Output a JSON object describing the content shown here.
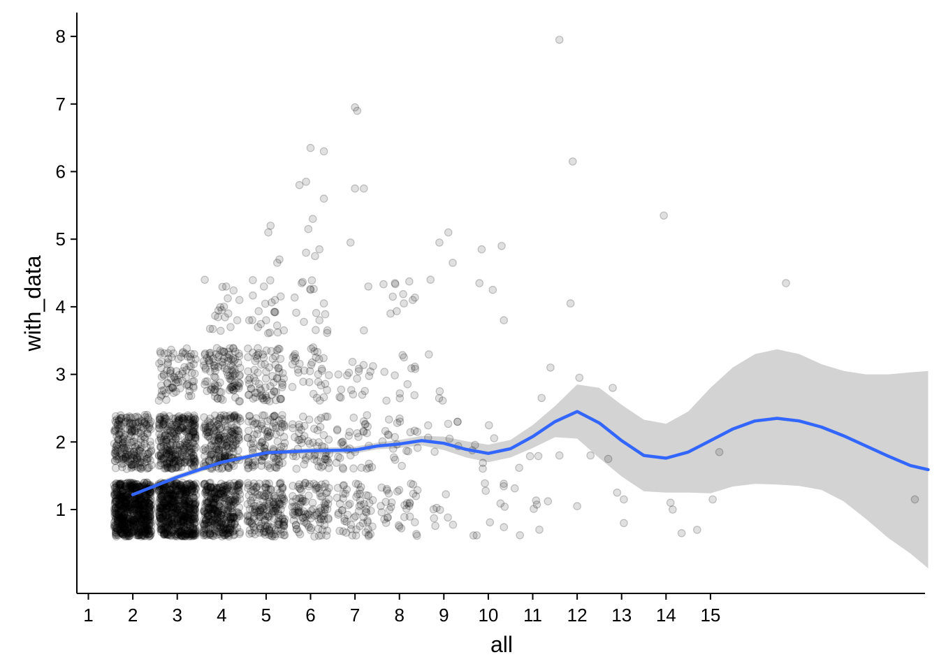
{
  "chart_data": {
    "type": "scatter",
    "xlabel": "all",
    "ylabel": "with_data",
    "x_ticks": [
      1,
      2,
      3,
      4,
      5,
      6,
      7,
      8,
      9,
      10,
      11,
      12,
      13,
      14,
      15
    ],
    "y_ticks": [
      1,
      2,
      3,
      4,
      5,
      6,
      7,
      8
    ],
    "xlim": [
      0.8,
      19.9
    ],
    "ylim": [
      -0.25,
      8.35
    ],
    "grid": false,
    "colors": {
      "points": "#000000",
      "smooth_line": "#3366FF",
      "confidence_band": "#D3D3D3"
    },
    "points_jittered": true,
    "point_groups": [
      {
        "x": 2,
        "y": 1,
        "count": 700
      },
      {
        "x": 2,
        "y": 2,
        "count": 220
      },
      {
        "x": 3,
        "y": 1,
        "count": 600
      },
      {
        "x": 3,
        "y": 2,
        "count": 300
      },
      {
        "x": 3,
        "y": 3,
        "count": 80
      },
      {
        "x": 4,
        "y": 1,
        "count": 360
      },
      {
        "x": 4,
        "y": 2,
        "count": 200
      },
      {
        "x": 4,
        "y": 3,
        "count": 110
      },
      {
        "x": 4,
        "y": 4,
        "count": 12
      },
      {
        "x": 5,
        "y": 1,
        "count": 180
      },
      {
        "x": 5,
        "y": 2,
        "count": 110
      },
      {
        "x": 5,
        "y": 3,
        "count": 75
      },
      {
        "x": 5,
        "y": 4,
        "count": 18
      },
      {
        "x": 6,
        "y": 1,
        "count": 110
      },
      {
        "x": 6,
        "y": 2,
        "count": 60
      },
      {
        "x": 6,
        "y": 3,
        "count": 35
      },
      {
        "x": 6,
        "y": 4,
        "count": 12
      },
      {
        "x": 7,
        "y": 1,
        "count": 60
      },
      {
        "x": 7,
        "y": 2,
        "count": 35
      },
      {
        "x": 7,
        "y": 3,
        "count": 18
      },
      {
        "x": 8,
        "y": 1,
        "count": 35
      },
      {
        "x": 8,
        "y": 2,
        "count": 20
      },
      {
        "x": 8,
        "y": 3,
        "count": 12
      },
      {
        "x": 8,
        "y": 4,
        "count": 6
      },
      {
        "x": 9,
        "y": 1,
        "count": 8
      },
      {
        "x": 9,
        "y": 2,
        "count": 8
      },
      {
        "x": 9,
        "y": 3,
        "count": 4
      },
      {
        "x": 10,
        "y": 1,
        "count": 10
      },
      {
        "x": 10,
        "y": 2,
        "count": 6
      },
      {
        "x": 11,
        "y": 1,
        "count": 7
      },
      {
        "x": 11,
        "y": 2,
        "count": 3
      }
    ],
    "outliers": [
      [
        4.1,
        4.3
      ],
      [
        4.2,
        3.7
      ],
      [
        4.4,
        4.1
      ],
      [
        4.35,
        3.8
      ],
      [
        4.0,
        3.95
      ],
      [
        4.15,
        3.9
      ],
      [
        4.05,
        4.0
      ],
      [
        5.1,
        5.2
      ],
      [
        5.05,
        5.1
      ],
      [
        5.25,
        4.65
      ],
      [
        5.3,
        4.7
      ],
      [
        4.95,
        4.3
      ],
      [
        5.2,
        4.1
      ],
      [
        5.4,
        3.65
      ],
      [
        5.0,
        3.8
      ],
      [
        5.75,
        5.8
      ],
      [
        5.9,
        5.85
      ],
      [
        6.0,
        6.35
      ],
      [
        6.3,
        6.3
      ],
      [
        6.3,
        5.6
      ],
      [
        5.95,
        5.15
      ],
      [
        6.05,
        5.3
      ],
      [
        5.9,
        4.8
      ],
      [
        6.2,
        4.85
      ],
      [
        6.1,
        4.75
      ],
      [
        5.8,
        4.35
      ],
      [
        6.0,
        4.25
      ],
      [
        6.3,
        4.05
      ],
      [
        6.2,
        3.8
      ],
      [
        7.0,
        6.95
      ],
      [
        7.05,
        6.9
      ],
      [
        7.0,
        5.75
      ],
      [
        7.2,
        5.75
      ],
      [
        6.9,
        4.95
      ],
      [
        7.3,
        4.3
      ],
      [
        7.2,
        3.65
      ],
      [
        7.9,
        4.35
      ],
      [
        7.85,
        4.15
      ],
      [
        8.3,
        4.1
      ],
      [
        7.8,
        3.9
      ],
      [
        8.1,
        4.05
      ],
      [
        8.9,
        4.95
      ],
      [
        9.1,
        5.1
      ],
      [
        9.2,
        4.65
      ],
      [
        8.7,
        4.4
      ],
      [
        9.85,
        4.85
      ],
      [
        10.3,
        4.9
      ],
      [
        10.1,
        4.25
      ],
      [
        9.8,
        4.35
      ],
      [
        10.35,
        3.8
      ],
      [
        11.4,
        3.1
      ],
      [
        11.2,
        2.65
      ],
      [
        11.6,
        7.95
      ],
      [
        11.9,
        6.15
      ],
      [
        11.85,
        4.05
      ],
      [
        12.05,
        2.95
      ],
      [
        12.0,
        1.05
      ],
      [
        11.6,
        1.8
      ],
      [
        12.3,
        1.8
      ],
      [
        12.8,
        2.8
      ],
      [
        12.7,
        1.75
      ],
      [
        12.9,
        1.25
      ],
      [
        13.05,
        1.15
      ],
      [
        13.05,
        0.8
      ],
      [
        13.95,
        5.35
      ],
      [
        14.1,
        1.1
      ],
      [
        14.15,
        1.0
      ],
      [
        14.35,
        0.65
      ],
      [
        14.7,
        0.7
      ],
      [
        15.2,
        1.85
      ],
      [
        15.05,
        1.15
      ],
      [
        16.7,
        4.35
      ],
      [
        19.6,
        1.15
      ]
    ],
    "smooth_line": {
      "method": "loess",
      "x": [
        2.0,
        3,
        4,
        5,
        6,
        7,
        7.5,
        8,
        8.5,
        9,
        9.5,
        10,
        10.5,
        11,
        11.5,
        12,
        12.5,
        13,
        13.5,
        14,
        14.5,
        15,
        15.5,
        16,
        16.5,
        17,
        17.5,
        18,
        18.5,
        19,
        19.5,
        19.9
      ],
      "y": [
        1.22,
        1.48,
        1.7,
        1.84,
        1.87,
        1.88,
        1.94,
        1.97,
        2.02,
        1.98,
        1.89,
        1.83,
        1.9,
        2.08,
        2.3,
        2.45,
        2.28,
        2.02,
        1.8,
        1.76,
        1.85,
        2.02,
        2.19,
        2.31,
        2.35,
        2.31,
        2.22,
        2.09,
        1.94,
        1.79,
        1.65,
        1.59
      ],
      "ci_upper": [
        1.27,
        1.52,
        1.74,
        1.87,
        1.91,
        1.93,
        1.99,
        2.03,
        2.09,
        2.08,
        2.01,
        1.96,
        2.03,
        2.25,
        2.53,
        2.85,
        2.8,
        2.55,
        2.33,
        2.27,
        2.45,
        2.8,
        3.1,
        3.3,
        3.37,
        3.3,
        3.15,
        3.05,
        3.0,
        3.0,
        3.03,
        3.05
      ],
      "ci_lower": [
        1.17,
        1.44,
        1.66,
        1.81,
        1.83,
        1.83,
        1.89,
        1.91,
        1.95,
        1.88,
        1.77,
        1.7,
        1.77,
        1.91,
        2.07,
        2.05,
        1.76,
        1.49,
        1.27,
        1.25,
        1.25,
        1.24,
        1.34,
        1.38,
        1.37,
        1.35,
        1.29,
        1.12,
        0.86,
        0.58,
        0.35,
        0.13
      ]
    }
  }
}
